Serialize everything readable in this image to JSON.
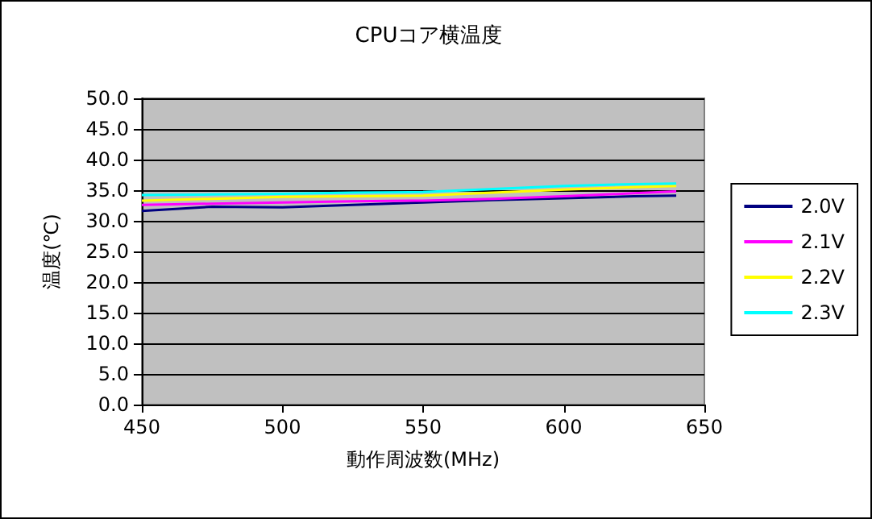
{
  "chart_data": {
    "type": "line",
    "title": "CPUコア横温度",
    "xlabel": "動作周波数(MHz)",
    "ylabel": "温度(℃)",
    "x": [
      450,
      475,
      500,
      525,
      550,
      575,
      600,
      625,
      640
    ],
    "series": [
      {
        "name": "2.0V",
        "color": "#000080",
        "values": [
          31.6,
          32.3,
          32.2,
          32.6,
          33.0,
          33.4,
          33.7,
          34.0,
          34.1
        ]
      },
      {
        "name": "2.1V",
        "color": "#ff00ff",
        "values": [
          32.6,
          32.8,
          33.0,
          33.2,
          33.3,
          33.6,
          34.0,
          34.5,
          34.8
        ]
      },
      {
        "name": "2.2V",
        "color": "#ffff00",
        "values": [
          33.3,
          33.6,
          33.9,
          34.0,
          34.1,
          34.6,
          35.1,
          35.5,
          35.7
        ]
      },
      {
        "name": "2.3V",
        "color": "#00ffff",
        "values": [
          34.2,
          34.3,
          34.4,
          34.6,
          34.7,
          35.2,
          35.7,
          36.0,
          36.1
        ]
      }
    ],
    "xlim": [
      450,
      650
    ],
    "xticks": [
      450,
      500,
      550,
      600,
      650
    ],
    "ylim": [
      0,
      50
    ],
    "yticks": [
      {
        "value": 0,
        "label": "0.0"
      },
      {
        "value": 5,
        "label": "5.0"
      },
      {
        "value": 10,
        "label": "10.0"
      },
      {
        "value": 15,
        "label": "15.0"
      },
      {
        "value": 20,
        "label": "20.0"
      },
      {
        "value": 25,
        "label": "25.0"
      },
      {
        "value": 30,
        "label": "30.0"
      },
      {
        "value": 35,
        "label": "35.0"
      },
      {
        "value": 40,
        "label": "40.0"
      },
      {
        "value": 45,
        "label": "45.0"
      },
      {
        "value": 50,
        "label": "50.0"
      }
    ],
    "grid": "y",
    "legend": "right",
    "marker": "none",
    "line_style": "solid"
  }
}
